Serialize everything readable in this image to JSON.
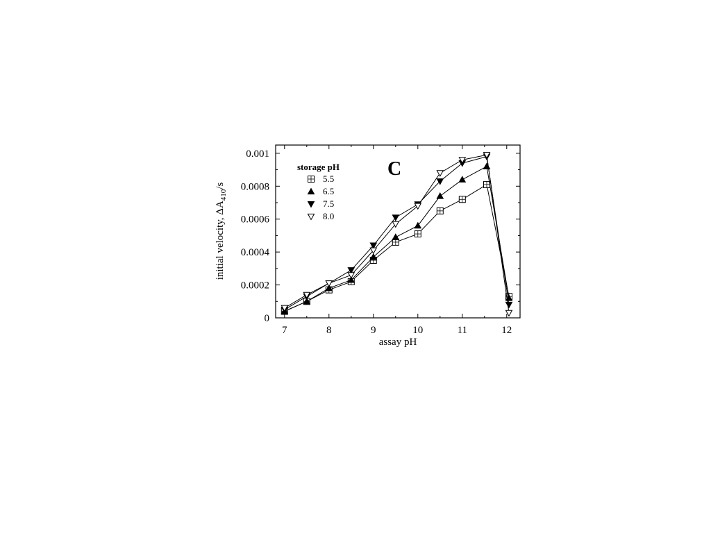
{
  "chart_data": {
    "type": "line",
    "panel_label": "C",
    "xlabel": "assay pH",
    "ylabel_prefix": "initial velocity,  ΔA",
    "ylabel_subscript": "410",
    "ylabel_suffix": "/s",
    "xlim": [
      6.8,
      12.3
    ],
    "ylim": [
      0,
      0.00105
    ],
    "xticks": [
      7,
      8,
      9,
      10,
      11,
      12
    ],
    "xtick_labels": [
      "7",
      "8",
      "9",
      "10",
      "11",
      "12"
    ],
    "yticks": [
      0,
      0.0002,
      0.0004,
      0.0006,
      0.0008,
      0.001
    ],
    "ytick_labels": [
      "0",
      "0.0002",
      "0.0004",
      "0.0006",
      "0.0008",
      "0.001"
    ],
    "grid": false,
    "legend_title": "storage pH",
    "legend_position": "top-left",
    "x": [
      7.0,
      7.5,
      8.0,
      8.5,
      9.0,
      9.5,
      10.0,
      10.5,
      11.0,
      11.55,
      12.05
    ],
    "series": [
      {
        "name": "5.5",
        "marker": "square-plus",
        "values": [
          4e-05,
          0.0001,
          0.00017,
          0.00022,
          0.00035,
          0.00046,
          0.00051,
          0.00065,
          0.00072,
          0.00081,
          0.00013
        ]
      },
      {
        "name": "6.5",
        "marker": "triangle-up-filled",
        "values": [
          4e-05,
          0.0001,
          0.00018,
          0.00023,
          0.00037,
          0.00049,
          0.00056,
          0.00074,
          0.00084,
          0.00092,
          0.00012
        ]
      },
      {
        "name": "7.5",
        "marker": "triangle-down-filled",
        "values": [
          5e-05,
          0.00013,
          0.00021,
          0.00029,
          0.00044,
          0.00061,
          0.00069,
          0.00083,
          0.00094,
          0.00098,
          8e-05
        ]
      },
      {
        "name": "8.0",
        "marker": "triangle-down-open",
        "values": [
          6e-05,
          0.00014,
          0.00021,
          0.00026,
          0.00041,
          0.00057,
          0.00068,
          0.00088,
          0.00096,
          0.00099,
          3e-05
        ]
      }
    ]
  }
}
